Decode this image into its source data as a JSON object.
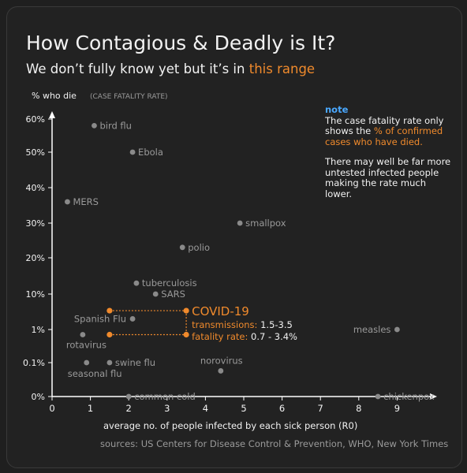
{
  "title": "How Contagious & Deadly is It?",
  "subtitle": {
    "prefix": "We don’t fully know yet but it’s in ",
    "highlight": "this range"
  },
  "note": {
    "header": "note",
    "p1_before": "The case fatality rate only shows the ",
    "p1_highlight": "% of confirmed cases who have died.",
    "p2": "There may well be far more untested infected people making the rate much lower."
  },
  "sources": "sources: US Centers for Disease Control & Prevention, WHO, New York Times",
  "colors": {
    "background": "#222222",
    "text": "#f2f2f2",
    "muted": "#9a9a9a",
    "accent": "#f08a2c",
    "note": "#4aa8ff",
    "point": "#8a8a8a"
  },
  "chart_data": {
    "type": "scatter",
    "ylabel": "% who die",
    "ylabel_sub": "(CASE FATALITY RATE)",
    "xlabel": "average no. of people infected by each sick person (R0)",
    "x_ticks": [
      "0",
      "1",
      "2",
      "3",
      "4",
      "5",
      "6",
      "7",
      "8",
      "9"
    ],
    "xlim": [
      0,
      10
    ],
    "y_ticks": [
      "0%",
      "0.1%",
      "1%",
      "10%",
      "20%",
      "30%",
      "40%",
      "50%",
      "60%"
    ],
    "points": [
      {
        "name": "bird flu",
        "x": 1.1,
        "y": "58%"
      },
      {
        "name": "Ebola",
        "x": 2.1,
        "y": "50%"
      },
      {
        "name": "MERS",
        "x": 0.4,
        "y": "36%"
      },
      {
        "name": "smallpox",
        "x": 4.9,
        "y": "30%"
      },
      {
        "name": "polio",
        "x": 3.4,
        "y": "23%"
      },
      {
        "name": "tuberculosis",
        "x": 2.2,
        "y": "13%"
      },
      {
        "name": "SARS",
        "x": 2.7,
        "y": "10%"
      },
      {
        "name": "Spanish Flu",
        "x": 2.1,
        "y": "2%"
      },
      {
        "name": "measles",
        "x": 9.0,
        "y": "1%"
      },
      {
        "name": "rotavirus",
        "x": 0.8,
        "y": "0.7%"
      },
      {
        "name": "swine flu",
        "x": 1.5,
        "y": "0.1%"
      },
      {
        "name": "seasonal flu",
        "x": 0.9,
        "y": "0.1%"
      },
      {
        "name": "norovirus",
        "x": 4.4,
        "y": "0.03%"
      },
      {
        "name": "common cold",
        "x": 2.0,
        "y": "0%"
      },
      {
        "name": "chickenpox",
        "x": 8.5,
        "y": "0.001%"
      }
    ],
    "covid": {
      "name": "COVID-19",
      "transmissions_label": "transmissions:",
      "transmissions": "1.5-3.5",
      "fatality_label": "fatality rate:",
      "fatality": "0.7 - 3.4%",
      "x_range": [
        1.5,
        3.5
      ],
      "y_range": [
        "0.7%",
        "3.4%"
      ]
    }
  }
}
